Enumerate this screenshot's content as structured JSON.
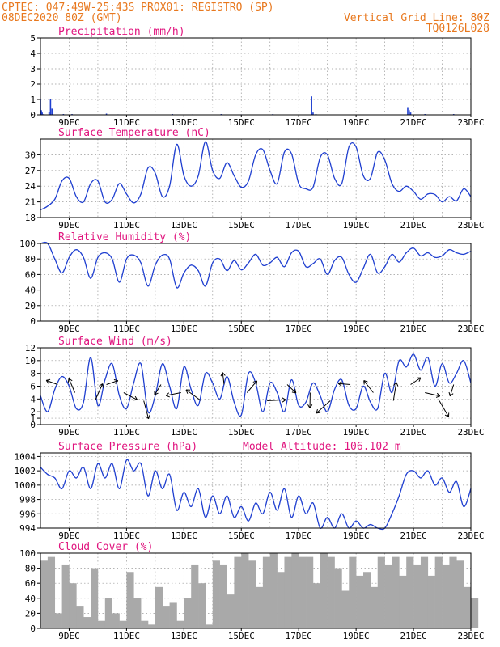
{
  "header": {
    "line1": "CPTEC:   047:49W-25:43S  PROX01: REGISTRO (SP)",
    "line2_left": "08DEC2020 80Z (GMT)",
    "line2_right": "Vertical Grid Line: 80Z",
    "line3_right": "TQ0126L028"
  },
  "x_axis": {
    "start_day": 8,
    "end_day": 23,
    "tick_labels": [
      "9DEC",
      "11DEC",
      "13DEC",
      "15DEC",
      "17DEC",
      "19DEC",
      "21DEC",
      "23DEC"
    ]
  },
  "colors": {
    "header": "#e8781e",
    "title": "#e0147e",
    "curve": "#1f3fd0",
    "cloud": "#a9a9a9",
    "grid": "#9a9a9a"
  },
  "chart_data": [
    {
      "type": "bar",
      "title": "Precipitation (mm/h)",
      "ylim": [
        0,
        5
      ],
      "yticks": [
        0,
        1,
        2,
        3,
        4,
        5
      ],
      "grid": true,
      "x": [
        8.0,
        8.03,
        8.06,
        8.12,
        8.3,
        8.35,
        8.4,
        8.8,
        9.1,
        9.3,
        10.3,
        10.7,
        12.6,
        13.0,
        13.3,
        14.3,
        15.0,
        16.1,
        17.45,
        17.5,
        17.6,
        19.0,
        20.8,
        20.85,
        20.9,
        21.4,
        22.4
      ],
      "values": [
        1.0,
        0.3,
        0.15,
        0.05,
        0.2,
        1.0,
        0.4,
        0.05,
        0.05,
        0.02,
        0.08,
        0.03,
        0.05,
        0.02,
        0.03,
        0.05,
        0.03,
        0.05,
        1.2,
        0.15,
        0.05,
        0.02,
        0.5,
        0.3,
        0.15,
        0.05,
        0.05
      ]
    },
    {
      "type": "line",
      "title": "Surface Temperature (nC)",
      "ylim": [
        18,
        33
      ],
      "yticks": [
        18,
        21,
        24,
        27,
        30
      ],
      "grid": true,
      "x": [
        8.0,
        8.2,
        8.5,
        8.75,
        9.0,
        9.25,
        9.5,
        9.75,
        10.0,
        10.25,
        10.5,
        10.75,
        11.0,
        11.25,
        11.5,
        11.75,
        12.0,
        12.25,
        12.5,
        12.75,
        13.0,
        13.25,
        13.5,
        13.75,
        14.0,
        14.25,
        14.5,
        14.75,
        15.0,
        15.25,
        15.5,
        15.75,
        16.0,
        16.25,
        16.5,
        16.75,
        17.0,
        17.25,
        17.5,
        17.75,
        18.0,
        18.25,
        18.5,
        18.75,
        19.0,
        19.25,
        19.5,
        19.75,
        20.0,
        20.25,
        20.5,
        20.75,
        21.0,
        21.25,
        21.5,
        21.75,
        22.0,
        22.25,
        22.5,
        22.75,
        23.0
      ],
      "values": [
        19.5,
        20.0,
        21.5,
        25.0,
        25.5,
        22.0,
        21.0,
        24.5,
        25.0,
        21.0,
        21.5,
        24.5,
        22.5,
        20.8,
        22.5,
        27.5,
        26.5,
        22.0,
        24.0,
        32.0,
        26.0,
        24.0,
        26.0,
        32.5,
        27.0,
        25.5,
        28.5,
        26.0,
        23.8,
        25.0,
        30.0,
        31.0,
        27.0,
        24.5,
        30.5,
        30.2,
        24.5,
        23.5,
        23.8,
        29.5,
        30.0,
        25.5,
        24.5,
        31.5,
        31.5,
        26.0,
        25.5,
        30.5,
        29.0,
        24.5,
        23.0,
        24.0,
        23.0,
        21.5,
        22.5,
        22.4,
        21.0,
        22.0,
        21.2,
        23.5,
        22.0
      ]
    },
    {
      "type": "line",
      "title": "Relative Humidity (%)",
      "ylim": [
        0,
        100
      ],
      "yticks": [
        0,
        20,
        40,
        60,
        80,
        100
      ],
      "grid": true,
      "x": [
        8.0,
        8.25,
        8.5,
        8.75,
        9.0,
        9.25,
        9.5,
        9.75,
        10.0,
        10.25,
        10.5,
        10.75,
        11.0,
        11.25,
        11.5,
        11.75,
        12.0,
        12.25,
        12.5,
        12.75,
        13.0,
        13.25,
        13.5,
        13.75,
        14.0,
        14.25,
        14.5,
        14.75,
        15.0,
        15.25,
        15.5,
        15.75,
        16.0,
        16.25,
        16.5,
        16.75,
        17.0,
        17.25,
        17.5,
        17.75,
        18.0,
        18.25,
        18.5,
        18.75,
        19.0,
        19.25,
        19.5,
        19.75,
        20.0,
        20.25,
        20.5,
        20.75,
        21.0,
        21.25,
        21.5,
        21.75,
        22.0,
        22.25,
        22.5,
        22.75,
        23.0
      ],
      "values": [
        100,
        100,
        80,
        62,
        82,
        92,
        82,
        55,
        82,
        88,
        80,
        50,
        80,
        85,
        75,
        45,
        72,
        85,
        80,
        43,
        62,
        72,
        65,
        45,
        75,
        80,
        65,
        78,
        66,
        75,
        86,
        72,
        75,
        82,
        70,
        88,
        90,
        70,
        74,
        80,
        60,
        78,
        82,
        60,
        50,
        68,
        86,
        62,
        70,
        86,
        76,
        88,
        94,
        84,
        88,
        82,
        84,
        92,
        88,
        86,
        90
      ]
    },
    {
      "type": "line",
      "title": "Surface Wind (m/s)",
      "ylim": [
        0,
        12
      ],
      "yticks": [
        0,
        1,
        2,
        4,
        6,
        8,
        10,
        12
      ],
      "grid": true,
      "x": [
        8.0,
        8.25,
        8.5,
        8.75,
        9.0,
        9.25,
        9.5,
        9.75,
        10.0,
        10.25,
        10.5,
        10.75,
        11.0,
        11.25,
        11.5,
        11.75,
        12.0,
        12.25,
        12.5,
        12.75,
        13.0,
        13.25,
        13.5,
        13.75,
        14.0,
        14.25,
        14.5,
        14.75,
        15.0,
        15.25,
        15.5,
        15.75,
        16.0,
        16.25,
        16.5,
        16.75,
        17.0,
        17.25,
        17.5,
        17.75,
        18.0,
        18.25,
        18.5,
        18.75,
        19.0,
        19.25,
        19.5,
        19.75,
        20.0,
        20.25,
        20.5,
        20.75,
        21.0,
        21.25,
        21.5,
        21.75,
        22.0,
        22.25,
        22.5,
        22.75,
        23.0
      ],
      "values": [
        4.5,
        2.0,
        5.5,
        7.5,
        6.0,
        2.5,
        3.5,
        10.5,
        3.0,
        7.0,
        9.5,
        4.5,
        2.5,
        6.5,
        9.5,
        2.0,
        4.5,
        9.5,
        6.0,
        2.5,
        9.0,
        5.5,
        3.0,
        8.0,
        6.5,
        4.0,
        7.5,
        3.5,
        1.5,
        8.0,
        6.5,
        2.0,
        6.5,
        5.0,
        2.0,
        7.0,
        3.0,
        3.5,
        6.5,
        4.5,
        2.0,
        5.5,
        7.0,
        3.0,
        2.5,
        6.0,
        3.5,
        2.5,
        8.0,
        5.0,
        10.0,
        9.0,
        11.0,
        8.5,
        10.5,
        6.0,
        9.5,
        6.5,
        8.0,
        10.0,
        6.5
      ],
      "arrows_x": [
        8.6,
        9.2,
        9.9,
        10.3,
        10.9,
        11.6,
        12.2,
        12.9,
        13.6,
        14.4,
        15.2,
        15.9,
        16.6,
        17.4,
        18.1,
        18.8,
        19.6,
        20.3,
        20.9,
        21.4,
        21.9,
        22.4
      ]
    },
    {
      "type": "line",
      "title": "Surface Pressure (hPa)",
      "annotation": "Model Altitude: 106.102 m",
      "ylim": [
        994,
        1004.5
      ],
      "yticks": [
        994,
        996,
        998,
        1000,
        1002,
        1004
      ],
      "grid": true,
      "x": [
        8.0,
        8.25,
        8.5,
        8.75,
        9.0,
        9.25,
        9.5,
        9.75,
        10.0,
        10.25,
        10.5,
        10.75,
        11.0,
        11.25,
        11.5,
        11.75,
        12.0,
        12.25,
        12.5,
        12.75,
        13.0,
        13.25,
        13.5,
        13.75,
        14.0,
        14.25,
        14.5,
        14.75,
        15.0,
        15.25,
        15.5,
        15.75,
        16.0,
        16.25,
        16.5,
        16.75,
        17.0,
        17.25,
        17.5,
        17.75,
        18.0,
        18.25,
        18.5,
        18.75,
        19.0,
        19.25,
        19.5,
        19.75,
        20.0,
        20.25,
        20.5,
        20.75,
        21.0,
        21.25,
        21.5,
        21.75,
        22.0,
        22.25,
        22.5,
        22.75,
        23.0
      ],
      "values": [
        1002.5,
        1001.5,
        1001.0,
        999.5,
        1002.0,
        1001.0,
        1002.5,
        999.5,
        1003.0,
        1001.0,
        1003.0,
        999.5,
        1003.5,
        1002.0,
        1003.0,
        998.5,
        1002.0,
        999.5,
        1001.5,
        996.5,
        999.0,
        997.0,
        999.5,
        995.5,
        998.5,
        996.0,
        998.5,
        995.5,
        997.0,
        995.0,
        997.5,
        996.0,
        999.0,
        996.5,
        999.5,
        995.5,
        998.5,
        996.0,
        997.5,
        994.0,
        995.5,
        994.0,
        996.0,
        993.5,
        995.0,
        993.5,
        994.5,
        993.0,
        994.0,
        996.0,
        998.5,
        1001.5,
        1002.0,
        1001.0,
        1002.0,
        1000.0,
        1001.0,
        999.0,
        1000.5,
        997.0,
        999.5
      ]
    },
    {
      "type": "area",
      "title": "Cloud Cover (%)",
      "ylim": [
        0,
        100
      ],
      "yticks": [
        0,
        20,
        40,
        60,
        80,
        100
      ],
      "grid": true,
      "x": [
        8.0,
        8.25,
        8.5,
        8.75,
        9.0,
        9.25,
        9.5,
        9.75,
        10.0,
        10.25,
        10.5,
        10.75,
        11.0,
        11.25,
        11.5,
        11.75,
        12.0,
        12.25,
        12.5,
        12.75,
        13.0,
        13.25,
        13.5,
        13.75,
        14.0,
        14.25,
        14.5,
        14.75,
        15.0,
        15.25,
        15.5,
        15.75,
        16.0,
        16.25,
        16.5,
        16.75,
        17.0,
        17.25,
        17.5,
        17.75,
        18.0,
        18.25,
        18.5,
        18.75,
        19.0,
        19.25,
        19.5,
        19.75,
        20.0,
        20.25,
        20.5,
        20.75,
        21.0,
        21.25,
        21.5,
        21.75,
        22.0,
        22.25,
        22.5,
        22.75,
        23.0
      ],
      "values": [
        90,
        95,
        20,
        85,
        60,
        30,
        15,
        80,
        10,
        40,
        20,
        10,
        75,
        40,
        10,
        5,
        55,
        30,
        35,
        10,
        40,
        85,
        60,
        5,
        90,
        85,
        45,
        95,
        100,
        90,
        55,
        95,
        100,
        75,
        95,
        100,
        95,
        95,
        60,
        100,
        95,
        80,
        50,
        95,
        70,
        75,
        55,
        95,
        85,
        95,
        70,
        95,
        85,
        95,
        70,
        95,
        85,
        95,
        90,
        55,
        40
      ]
    }
  ]
}
